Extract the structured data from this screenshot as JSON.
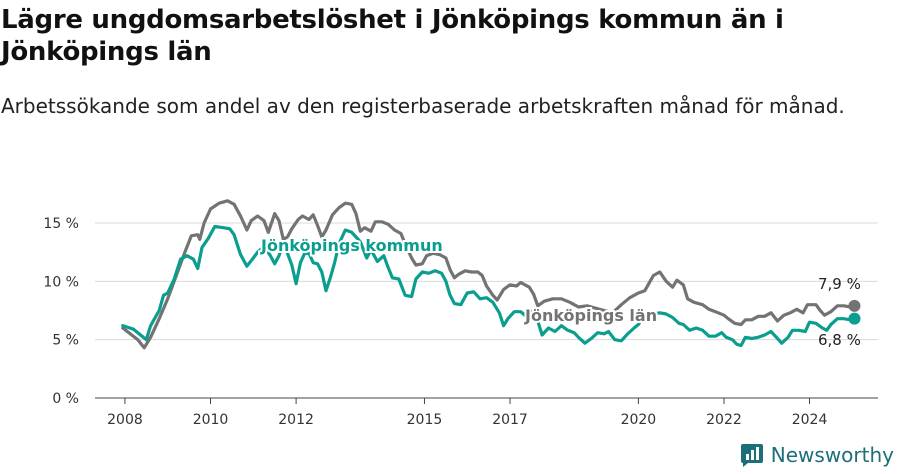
{
  "header": {
    "title": "Lägre ungdomsarbetslöshet i Jönköpings kommun än i Jönköpings län",
    "subtitle": "Arbetssökande som andel av den registerbaserade arbetskraften månad för månad."
  },
  "brand": {
    "name": "Newsworthy",
    "icon": "newsworthy-logo-icon",
    "color": "#1c6f78"
  },
  "chart_data": {
    "type": "line",
    "x_unit": "year",
    "x_ticks": [
      "2008",
      "2010",
      "2012",
      "2015",
      "2017",
      "2020",
      "2022",
      "2024"
    ],
    "y_ticks": [
      "0 %",
      "5 %",
      "10 %",
      "15 %"
    ],
    "ylim": [
      0,
      15
    ],
    "grid": true,
    "series": [
      {
        "name": "Jönköpings län",
        "color": "#737373",
        "end_label": "7,9 %",
        "points": [
          [
            2007.95,
            6.0
          ],
          [
            2008.3,
            5.0
          ],
          [
            2008.45,
            4.3
          ],
          [
            2008.6,
            5.2
          ],
          [
            2008.8,
            6.8
          ],
          [
            2009.0,
            8.5
          ],
          [
            2009.2,
            10.5
          ],
          [
            2009.4,
            12.5
          ],
          [
            2009.55,
            13.9
          ],
          [
            2009.7,
            14.0
          ],
          [
            2009.75,
            13.6
          ],
          [
            2009.85,
            15.0
          ],
          [
            2010.0,
            16.2
          ],
          [
            2010.2,
            16.7
          ],
          [
            2010.4,
            16.9
          ],
          [
            2010.55,
            16.6
          ],
          [
            2010.7,
            15.6
          ],
          [
            2010.85,
            14.4
          ],
          [
            2010.95,
            15.2
          ],
          [
            2011.1,
            15.6
          ],
          [
            2011.25,
            15.2
          ],
          [
            2011.35,
            14.2
          ],
          [
            2011.5,
            15.8
          ],
          [
            2011.6,
            15.2
          ],
          [
            2011.7,
            13.6
          ],
          [
            2011.8,
            13.8
          ],
          [
            2011.9,
            14.5
          ],
          [
            2012.05,
            15.3
          ],
          [
            2012.15,
            15.6
          ],
          [
            2012.3,
            15.3
          ],
          [
            2012.4,
            15.7
          ],
          [
            2012.5,
            14.8
          ],
          [
            2012.6,
            13.8
          ],
          [
            2012.7,
            14.4
          ],
          [
            2012.85,
            15.7
          ],
          [
            2013.0,
            16.3
          ],
          [
            2013.15,
            16.7
          ],
          [
            2013.3,
            16.6
          ],
          [
            2013.4,
            15.8
          ],
          [
            2013.5,
            14.3
          ],
          [
            2013.6,
            14.6
          ],
          [
            2013.75,
            14.3
          ],
          [
            2013.85,
            15.1
          ],
          [
            2014.0,
            15.1
          ],
          [
            2014.15,
            14.9
          ],
          [
            2014.3,
            14.4
          ],
          [
            2014.45,
            14.1
          ],
          [
            2014.55,
            13.2
          ],
          [
            2014.7,
            12.0
          ],
          [
            2014.8,
            11.4
          ],
          [
            2014.95,
            11.5
          ],
          [
            2015.05,
            12.2
          ],
          [
            2015.2,
            12.4
          ],
          [
            2015.35,
            12.3
          ],
          [
            2015.5,
            12.0
          ],
          [
            2015.6,
            11.0
          ],
          [
            2015.7,
            10.3
          ],
          [
            2015.8,
            10.6
          ],
          [
            2015.95,
            10.9
          ],
          [
            2016.1,
            10.8
          ],
          [
            2016.25,
            10.8
          ],
          [
            2016.35,
            10.5
          ],
          [
            2016.45,
            9.6
          ],
          [
            2016.6,
            8.8
          ],
          [
            2016.7,
            8.4
          ],
          [
            2016.85,
            9.3
          ],
          [
            2017.0,
            9.7
          ],
          [
            2017.15,
            9.6
          ],
          [
            2017.25,
            9.9
          ],
          [
            2017.45,
            9.5
          ],
          [
            2017.55,
            8.9
          ],
          [
            2017.65,
            7.9
          ]
        ]
      },
      {
        "name": "Jönköpings kommun",
        "color": "#0a9e8f",
        "end_label": "6,8 %",
        "points": [
          [
            2007.95,
            6.2
          ],
          [
            2008.2,
            5.9
          ],
          [
            2008.4,
            5.3
          ],
          [
            2008.5,
            5.0
          ],
          [
            2008.6,
            6.2
          ],
          [
            2008.8,
            7.5
          ],
          [
            2008.9,
            8.8
          ],
          [
            2009.0,
            9.0
          ],
          [
            2009.15,
            10.2
          ],
          [
            2009.3,
            11.9
          ],
          [
            2009.45,
            12.2
          ],
          [
            2009.6,
            11.9
          ],
          [
            2009.7,
            11.1
          ],
          [
            2009.8,
            12.9
          ],
          [
            2009.95,
            13.7
          ],
          [
            2010.1,
            14.7
          ],
          [
            2010.3,
            14.6
          ],
          [
            2010.45,
            14.5
          ],
          [
            2010.55,
            14.0
          ],
          [
            2010.7,
            12.3
          ],
          [
            2010.85,
            11.3
          ],
          [
            2011.0,
            12.0
          ],
          [
            2011.1,
            12.5
          ],
          [
            2011.25,
            13.0
          ],
          [
            2011.4,
            12.2
          ],
          [
            2011.5,
            11.5
          ],
          [
            2011.6,
            12.2
          ],
          [
            2011.7,
            13.3
          ],
          [
            2011.8,
            12.4
          ],
          [
            2011.9,
            11.4
          ],
          [
            2012.0,
            9.8
          ],
          [
            2012.1,
            11.6
          ],
          [
            2012.2,
            12.4
          ],
          [
            2012.3,
            12.4
          ],
          [
            2012.4,
            11.6
          ],
          [
            2012.5,
            11.5
          ],
          [
            2012.6,
            10.8
          ],
          [
            2012.7,
            9.2
          ],
          [
            2012.8,
            10.3
          ],
          [
            2012.9,
            11.6
          ],
          [
            2013.0,
            13.2
          ],
          [
            2013.15,
            14.4
          ],
          [
            2013.3,
            14.2
          ],
          [
            2013.4,
            13.8
          ],
          [
            2013.5,
            13.4
          ],
          [
            2013.65,
            12.0
          ],
          [
            2013.75,
            12.7
          ],
          [
            2013.9,
            11.7
          ],
          [
            2014.05,
            12.2
          ],
          [
            2014.15,
            11.2
          ],
          [
            2014.25,
            10.3
          ],
          [
            2014.4,
            10.2
          ],
          [
            2014.55,
            8.8
          ],
          [
            2014.7,
            8.7
          ],
          [
            2014.8,
            10.2
          ],
          [
            2014.95,
            10.8
          ],
          [
            2015.1,
            10.7
          ],
          [
            2015.25,
            10.9
          ],
          [
            2015.4,
            10.7
          ],
          [
            2015.5,
            10.0
          ],
          [
            2015.6,
            8.8
          ],
          [
            2015.7,
            8.1
          ],
          [
            2015.85,
            8.0
          ],
          [
            2016.0,
            9.0
          ],
          [
            2016.15,
            9.1
          ],
          [
            2016.3,
            8.5
          ],
          [
            2016.45,
            8.6
          ],
          [
            2016.6,
            8.2
          ],
          [
            2016.75,
            7.3
          ],
          [
            2016.85,
            6.2
          ],
          [
            2016.95,
            6.8
          ],
          [
            2017.1,
            7.4
          ],
          [
            2017.25,
            7.4
          ],
          [
            2017.35,
            7.1
          ],
          [
            2017.45,
            7.6
          ],
          [
            2017.55,
            7.2
          ],
          [
            2017.65,
            6.6
          ]
        ]
      }
    ],
    "series_tail": [
      {
        "name": "Jönköpings län",
        "points": [
          [
            2017.8,
            8.3
          ],
          [
            2018.0,
            8.5
          ],
          [
            2018.2,
            8.5
          ],
          [
            2018.4,
            8.2
          ],
          [
            2018.6,
            7.8
          ],
          [
            2018.8,
            7.9
          ],
          [
            2019.0,
            7.7
          ],
          [
            2019.2,
            7.5
          ],
          [
            2019.4,
            7.3
          ],
          [
            2019.6,
            8.0
          ],
          [
            2019.8,
            8.6
          ],
          [
            2020.0,
            9.0
          ],
          [
            2020.15,
            9.2
          ],
          [
            2020.35,
            10.5
          ],
          [
            2020.5,
            10.8
          ],
          [
            2020.65,
            10.0
          ],
          [
            2020.8,
            9.5
          ],
          [
            2020.9,
            10.1
          ],
          [
            2021.05,
            9.7
          ],
          [
            2021.15,
            8.5
          ],
          [
            2021.3,
            8.2
          ],
          [
            2021.5,
            8.0
          ],
          [
            2021.65,
            7.6
          ],
          [
            2021.8,
            7.4
          ],
          [
            2022.0,
            7.1
          ],
          [
            2022.1,
            6.8
          ],
          [
            2022.25,
            6.4
          ],
          [
            2022.4,
            6.3
          ],
          [
            2022.5,
            6.7
          ],
          [
            2022.65,
            6.7
          ],
          [
            2022.8,
            7.0
          ],
          [
            2022.95,
            7.0
          ],
          [
            2023.1,
            7.3
          ],
          [
            2023.25,
            6.6
          ],
          [
            2023.4,
            7.1
          ],
          [
            2023.55,
            7.3
          ],
          [
            2023.7,
            7.6
          ],
          [
            2023.85,
            7.3
          ],
          [
            2023.95,
            8.0
          ],
          [
            2024.15,
            8.0
          ],
          [
            2024.25,
            7.5
          ],
          [
            2024.35,
            7.1
          ],
          [
            2024.5,
            7.4
          ],
          [
            2024.65,
            7.9
          ],
          [
            2024.8,
            7.9
          ],
          [
            2024.95,
            7.8
          ],
          [
            2025.05,
            7.9
          ]
        ]
      },
      {
        "name": "Jönköpings kommun",
        "points": [
          [
            2017.75,
            5.4
          ],
          [
            2017.9,
            6.0
          ],
          [
            2018.05,
            5.7
          ],
          [
            2018.2,
            6.2
          ],
          [
            2018.35,
            5.8
          ],
          [
            2018.5,
            5.6
          ],
          [
            2018.6,
            5.2
          ],
          [
            2018.75,
            4.7
          ],
          [
            2018.9,
            5.1
          ],
          [
            2019.05,
            5.6
          ],
          [
            2019.2,
            5.5
          ],
          [
            2019.3,
            5.7
          ],
          [
            2019.45,
            5.0
          ],
          [
            2019.6,
            4.9
          ],
          [
            2019.75,
            5.5
          ],
          [
            2019.9,
            6.0
          ],
          [
            2020.0,
            6.3
          ],
          [
            2020.1,
            6.9
          ],
          [
            2020.2,
            7.3
          ],
          [
            2020.35,
            7.2
          ],
          [
            2020.5,
            7.3
          ],
          [
            2020.65,
            7.2
          ],
          [
            2020.8,
            6.9
          ],
          [
            2020.95,
            6.4
          ],
          [
            2021.05,
            6.3
          ],
          [
            2021.2,
            5.8
          ],
          [
            2021.35,
            6.0
          ],
          [
            2021.5,
            5.8
          ],
          [
            2021.65,
            5.3
          ],
          [
            2021.8,
            5.3
          ],
          [
            2021.95,
            5.6
          ],
          [
            2022.05,
            5.2
          ],
          [
            2022.2,
            5.0
          ],
          [
            2022.3,
            4.6
          ],
          [
            2022.4,
            4.5
          ],
          [
            2022.5,
            5.2
          ],
          [
            2022.65,
            5.1
          ],
          [
            2022.8,
            5.2
          ],
          [
            2022.95,
            5.4
          ],
          [
            2023.1,
            5.7
          ],
          [
            2023.25,
            5.1
          ],
          [
            2023.35,
            4.7
          ],
          [
            2023.5,
            5.2
          ],
          [
            2023.6,
            5.8
          ],
          [
            2023.75,
            5.8
          ],
          [
            2023.9,
            5.7
          ],
          [
            2024.0,
            6.5
          ],
          [
            2024.15,
            6.4
          ],
          [
            2024.3,
            6.0
          ],
          [
            2024.4,
            5.8
          ],
          [
            2024.5,
            6.3
          ],
          [
            2024.65,
            6.8
          ],
          [
            2024.8,
            6.8
          ],
          [
            2024.95,
            6.7
          ],
          [
            2025.05,
            6.8
          ]
        ]
      }
    ]
  }
}
